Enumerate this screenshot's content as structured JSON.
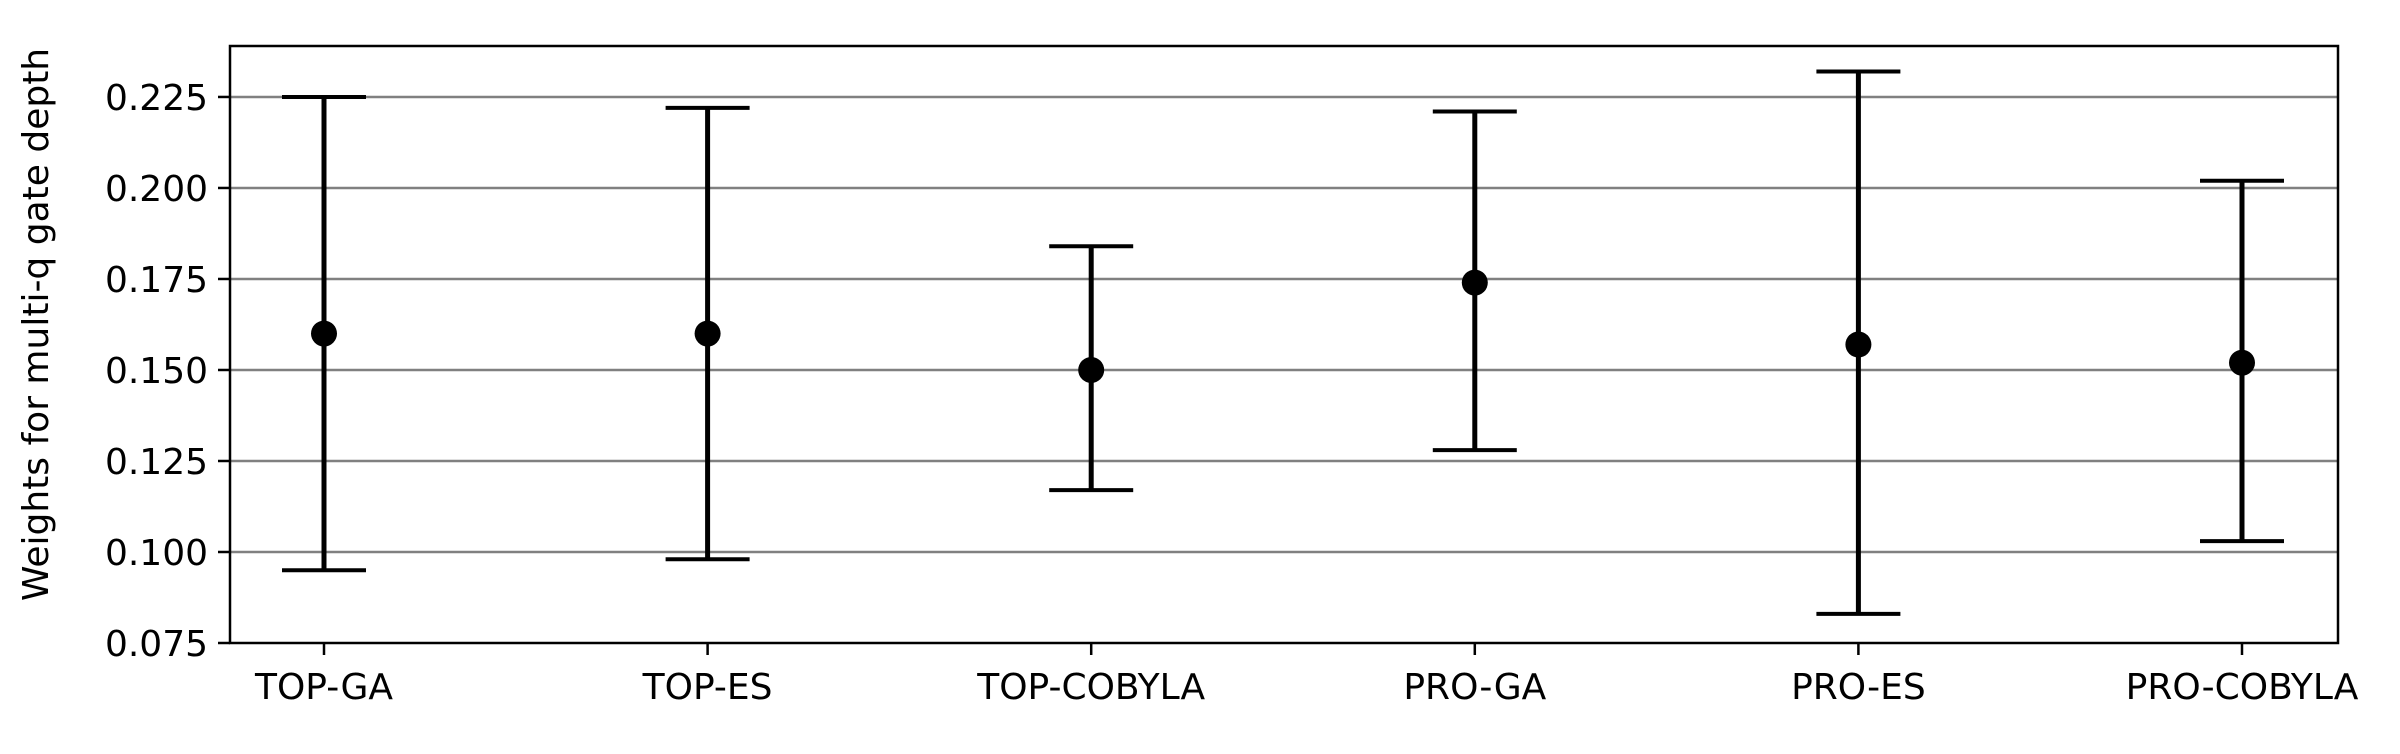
{
  "chart_data": {
    "type": "errorbar",
    "title": "",
    "xlabel": "",
    "ylabel": "Weights for multi-q gate depth",
    "categories": [
      "TOP-GA",
      "TOP-ES",
      "TOP-COBYLA",
      "PRO-GA",
      "PRO-ES",
      "PRO-COBYLA"
    ],
    "series": [
      {
        "values": [
          0.16,
          0.16,
          0.15,
          0.174,
          0.157,
          0.152
        ],
        "lower": [
          0.095,
          0.098,
          0.117,
          0.128,
          0.083,
          0.103
        ],
        "upper": [
          0.225,
          0.222,
          0.184,
          0.221,
          0.232,
          0.202
        ]
      }
    ],
    "ylim": [
      0.075,
      0.239
    ],
    "yticks": [
      0.075,
      0.1,
      0.125,
      0.15,
      0.175,
      0.2,
      0.225
    ],
    "ytick_labels": [
      "0.075",
      "0.100",
      "0.125",
      "0.150",
      "0.175",
      "0.200",
      "0.225"
    ],
    "grid": "horizontal",
    "legend": "none",
    "colors": {
      "marker": "#000000",
      "errorbar": "#000000",
      "grid": "#808080",
      "axes": "#000000"
    }
  }
}
